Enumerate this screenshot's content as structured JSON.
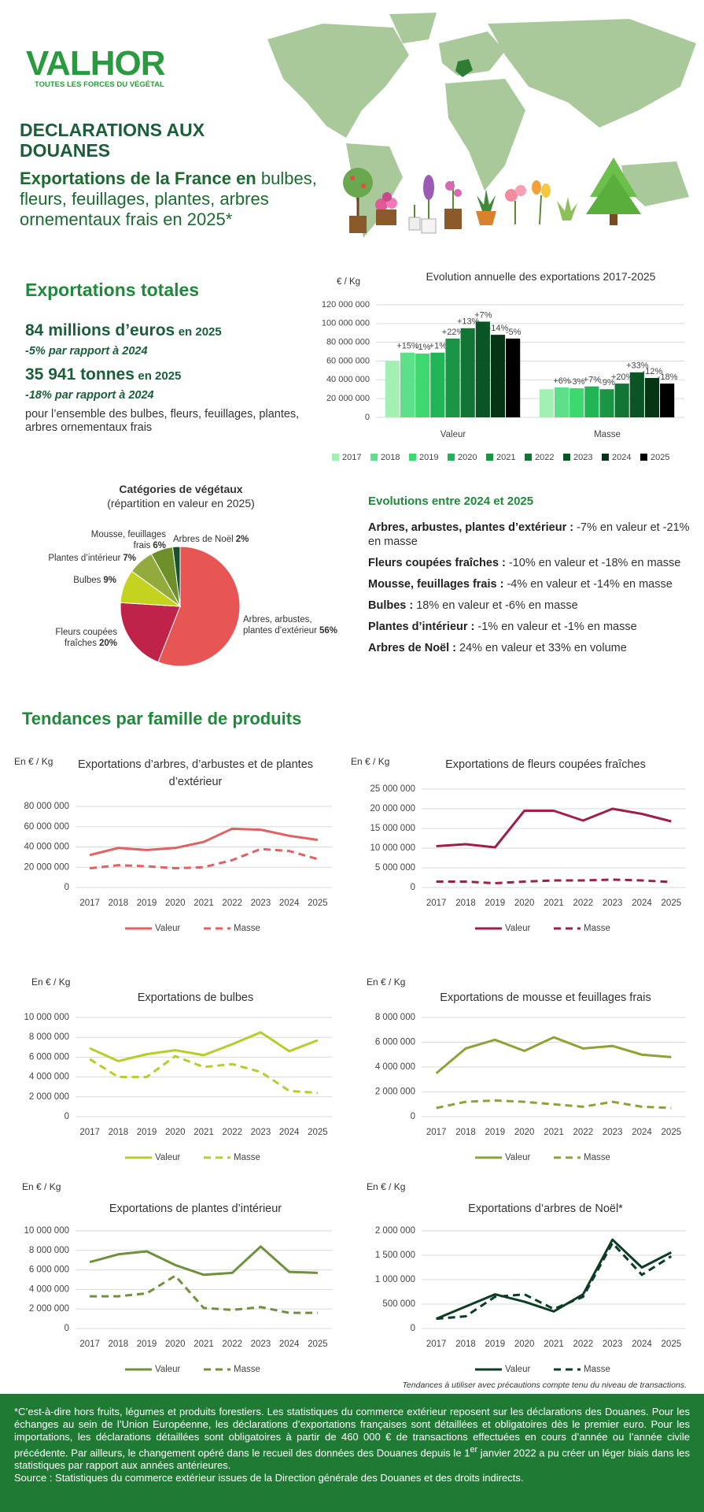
{
  "header": {
    "logo": "VALHOR",
    "tagline": "TOUTES LES FORCES DU VÉGÉTAL",
    "title": "DECLARATIONS AUX DOUANES",
    "subtitle_lead": "Exportations de la France en",
    "subtitle": "bulbes, fleurs, feuillages, plantes, arbres ornementaux frais en 2025*"
  },
  "summary": {
    "heading": "Exportations totales",
    "value": {
      "amount": "84 millions d’euros",
      "period": "en 2025",
      "change": "-5% par rapport à 2024"
    },
    "volume": {
      "amount": "35 941 tonnes",
      "period": "en 2025",
      "change": "-18% par rapport à 2024"
    },
    "scope": "pour l’ensemble des bulbes, fleurs, feuillages, plantes, arbres ornementaux frais"
  },
  "evolutions": {
    "heading": "Evolutions entre 2024 et 2025",
    "items": [
      {
        "label": "Arbres, arbustes, plantes d’extérieur :",
        "text": "-7% en valeur et -21% en masse"
      },
      {
        "label": "Fleurs coupées fraîches :",
        "text": "-10% en valeur et -18% en masse"
      },
      {
        "label": "Mousse, feuillages frais :",
        "text": "-4% en valeur et -14% en masse"
      },
      {
        "label": "Bulbes :",
        "text": "18% en valeur et -6% en masse"
      },
      {
        "label": "Plantes d’intérieur :",
        "text": "-1% en valeur et -1% en masse"
      },
      {
        "label": "Arbres de Noël :",
        "text": "24% en valeur et 33% en volume"
      }
    ]
  },
  "trends_heading": "Tendances par famille de produits",
  "chart_data": [
    {
      "type": "bar",
      "title": "Evolution annuelle des exportations 2017-2025",
      "ylabel": "€ / Kg",
      "categories": [
        "Valeur",
        "Masse"
      ],
      "series": [
        {
          "name": "2017",
          "color": "#a3f0b5",
          "values": [
            60000000,
            30000000
          ],
          "change_labels": [
            null,
            null
          ]
        },
        {
          "name": "2018",
          "color": "#5ee08a",
          "values": [
            69000000,
            32000000
          ],
          "change_labels": [
            "+15%",
            "+6%"
          ]
        },
        {
          "name": "2019",
          "color": "#3dd870",
          "values": [
            68000000,
            31000000
          ],
          "change_labels": [
            "-1%",
            "-3%"
          ]
        },
        {
          "name": "2020",
          "color": "#22b557",
          "values": [
            69000000,
            33000000
          ],
          "change_labels": [
            "+1%",
            "+7%"
          ]
        },
        {
          "name": "2021",
          "color": "#1a9445",
          "values": [
            84000000,
            30000000
          ],
          "change_labels": [
            "+22%",
            "-9%"
          ]
        },
        {
          "name": "2022",
          "color": "#137535",
          "values": [
            95000000,
            36000000
          ],
          "change_labels": [
            "+13%",
            "+20%"
          ]
        },
        {
          "name": "2023",
          "color": "#0b5425",
          "values": [
            102000000,
            48000000
          ],
          "change_labels": [
            "+7%",
            "+33%"
          ]
        },
        {
          "name": "2024",
          "color": "#063516",
          "values": [
            88000000,
            42000000
          ],
          "change_labels": [
            "-14%",
            "-12%"
          ]
        },
        {
          "name": "2025",
          "color": "#000000",
          "values": [
            84000000,
            36000000
          ],
          "change_labels": [
            "-5%",
            "-18%"
          ]
        }
      ],
      "ylim": [
        0,
        120000000
      ],
      "yticks": [
        0,
        {
          "value": 20000000,
          "label": "20 000 000"
        },
        {
          "value": 40000000,
          "label": "40 000 000"
        },
        {
          "value": 60000000,
          "label": "60 000 000"
        },
        {
          "value": 80000000,
          "label": "80 000 000"
        },
        {
          "value": 100000000,
          "label": "100 000 000"
        },
        {
          "value": 120000000,
          "label": "120 000 000"
        }
      ],
      "grid": true,
      "legend": "bottom"
    },
    {
      "type": "pie",
      "title": "Catégories de végétaux",
      "subtitle": "(répartition en valeur en 2025)",
      "categories": [
        "Arbres, arbustes, plantes d’extérieur",
        "Fleurs coupées fraîches",
        "Bulbes",
        "Plantes d’intérieur",
        "Mousse, feuillages frais",
        "Arbres de Noël"
      ],
      "values": [
        56,
        20,
        9,
        7,
        6,
        2
      ],
      "value_labels": [
        "56%",
        "20%",
        "9%",
        "7%",
        "6%",
        "2%"
      ],
      "colors": [
        "#e85555",
        "#c0234a",
        "#c3d31f",
        "#93ab3c",
        "#6f8f2a",
        "#1a5230"
      ]
    },
    {
      "type": "line",
      "title": "Exportations d’arbres, d’arbustes et de plantes d’extérieur",
      "ylabel": "En € / Kg",
      "categories": [
        "2017",
        "2018",
        "2019",
        "2020",
        "2021",
        "2022",
        "2023",
        "2024",
        "2025"
      ],
      "series": [
        {
          "name": "Valeur",
          "color": "#e06262",
          "dash": false,
          "values": [
            32000000,
            39000000,
            37000000,
            39000000,
            45000000,
            58000000,
            57000000,
            51000000,
            47000000
          ]
        },
        {
          "name": "Masse",
          "color": "#e06262",
          "dash": true,
          "values": [
            19000000,
            22000000,
            21000000,
            19000000,
            20000000,
            27000000,
            38000000,
            36000000,
            28000000
          ]
        }
      ],
      "ylim": [
        0,
        80000000
      ],
      "yticks": [
        0,
        {
          "value": 20000000,
          "label": "20 000 000"
        },
        {
          "value": 40000000,
          "label": "40 000 000"
        },
        {
          "value": 60000000,
          "label": "60 000 000"
        },
        {
          "value": 80000000,
          "label": "80 000 000"
        }
      ],
      "grid": true,
      "legend": "bottom"
    },
    {
      "type": "line",
      "title": "Exportations de fleurs coupées fraîches",
      "ylabel": "En € / Kg",
      "categories": [
        "2017",
        "2018",
        "2019",
        "2020",
        "2021",
        "2022",
        "2023",
        "2024",
        "2025"
      ],
      "series": [
        {
          "name": "Valeur",
          "color": "#9e1f4c",
          "dash": false,
          "values": [
            10500000,
            11000000,
            10200000,
            19500000,
            19500000,
            17000000,
            20000000,
            18700000,
            16800000
          ]
        },
        {
          "name": "Masse",
          "color": "#9e1f4c",
          "dash": true,
          "values": [
            1500000,
            1500000,
            1100000,
            1500000,
            1800000,
            1800000,
            2000000,
            1800000,
            1400000
          ]
        }
      ],
      "ylim": [
        0,
        25000000
      ],
      "yticks": [
        0,
        {
          "value": 5000000,
          "label": "5 000 000"
        },
        {
          "value": 10000000,
          "label": "10 000 000"
        },
        {
          "value": 15000000,
          "label": "15 000 000"
        },
        {
          "value": 20000000,
          "label": "20 000 000"
        },
        {
          "value": 25000000,
          "label": "25 000 000"
        }
      ],
      "grid": true,
      "legend": "bottom"
    },
    {
      "type": "line",
      "title": "Exportations de bulbes",
      "ylabel": "En € / Kg",
      "categories": [
        "2017",
        "2018",
        "2019",
        "2020",
        "2021",
        "2022",
        "2023",
        "2024",
        "2025"
      ],
      "series": [
        {
          "name": "Valeur",
          "color": "#b8cc2a",
          "dash": false,
          "values": [
            6900000,
            5600000,
            6300000,
            6700000,
            6200000,
            7300000,
            8500000,
            6600000,
            7700000
          ]
        },
        {
          "name": "Masse",
          "color": "#b8cc2a",
          "dash": true,
          "values": [
            5800000,
            4000000,
            4000000,
            6100000,
            5000000,
            5300000,
            4500000,
            2600000,
            2400000
          ]
        }
      ],
      "ylim": [
        0,
        10000000
      ],
      "yticks": [
        0,
        {
          "value": 2000000,
          "label": "2 000 000"
        },
        {
          "value": 4000000,
          "label": "4 000 000"
        },
        {
          "value": 6000000,
          "label": "6 000 000"
        },
        {
          "value": 8000000,
          "label": "8 000 000"
        },
        {
          "value": 10000000,
          "label": "10 000 000"
        }
      ],
      "grid": true,
      "legend": "bottom"
    },
    {
      "type": "line",
      "title": "Exportations de mousse et feuillages frais",
      "ylabel": "En € / Kg",
      "categories": [
        "2017",
        "2018",
        "2019",
        "2020",
        "2021",
        "2022",
        "2023",
        "2024",
        "2025"
      ],
      "series": [
        {
          "name": "Valeur",
          "color": "#8da336",
          "dash": false,
          "values": [
            3500000,
            5500000,
            6200000,
            5300000,
            6400000,
            5500000,
            5700000,
            5000000,
            4800000
          ]
        },
        {
          "name": "Masse",
          "color": "#8da336",
          "dash": true,
          "values": [
            700000,
            1200000,
            1300000,
            1200000,
            1000000,
            800000,
            1200000,
            800000,
            700000
          ]
        }
      ],
      "ylim": [
        0,
        8000000
      ],
      "yticks": [
        0,
        {
          "value": 2000000,
          "label": "2 000 000"
        },
        {
          "value": 4000000,
          "label": "4 000 000"
        },
        {
          "value": 6000000,
          "label": "6 000 000"
        },
        {
          "value": 8000000,
          "label": "8 000 000"
        }
      ],
      "grid": true,
      "legend": "bottom"
    },
    {
      "type": "line",
      "title": "Exportations de plantes d’intérieur",
      "ylabel": "En € / Kg",
      "categories": [
        "2017",
        "2018",
        "2019",
        "2020",
        "2021",
        "2022",
        "2023",
        "2024",
        "2025"
      ],
      "series": [
        {
          "name": "Valeur",
          "color": "#6f913b",
          "dash": false,
          "values": [
            6800000,
            7600000,
            7900000,
            6500000,
            5500000,
            5700000,
            8400000,
            5800000,
            5700000
          ]
        },
        {
          "name": "Masse",
          "color": "#6f913b",
          "dash": true,
          "values": [
            3300000,
            3300000,
            3600000,
            5400000,
            2100000,
            1900000,
            2200000,
            1600000,
            1600000
          ]
        }
      ],
      "ylim": [
        0,
        10000000
      ],
      "yticks": [
        0,
        {
          "value": 2000000,
          "label": "2 000 000"
        },
        {
          "value": 4000000,
          "label": "4 000 000"
        },
        {
          "value": 6000000,
          "label": "6 000 000"
        },
        {
          "value": 8000000,
          "label": "8 000 000"
        },
        {
          "value": 10000000,
          "label": "10 000 000"
        }
      ],
      "grid": true,
      "legend": "bottom"
    },
    {
      "type": "line",
      "title": "Exportations d’arbres de Noël*",
      "ylabel": "En € / Kg",
      "categories": [
        "2017",
        "2018",
        "2019",
        "2020",
        "2021",
        "2022",
        "2023",
        "2024",
        "2025"
      ],
      "series": [
        {
          "name": "Valeur",
          "color": "#0e3d26",
          "dash": false,
          "values": [
            200000,
            450000,
            700000,
            550000,
            350000,
            700000,
            1820000,
            1250000,
            1560000
          ]
        },
        {
          "name": "Masse",
          "color": "#0e3d26",
          "dash": true,
          "values": [
            200000,
            250000,
            650000,
            700000,
            400000,
            650000,
            1750000,
            1100000,
            1480000
          ]
        }
      ],
      "ylim": [
        0,
        2000000
      ],
      "yticks": [
        0,
        {
          "value": 500000,
          "label": "500 000"
        },
        {
          "value": 1000000,
          "label": "1 000 000"
        },
        {
          "value": 1500000,
          "label": "1 500 000"
        },
        {
          "value": 2000000,
          "label": "2 000 000"
        }
      ],
      "grid": true,
      "legend": "bottom"
    }
  ],
  "note": "Tendances à utiliser avec précautions compte tenu du niveau de transactions.",
  "footer": {
    "notes": [
      "*C’est-à-dire hors fruits, légumes et produits forestiers. Les statistiques du commerce extérieur reposent sur les déclarations des Douanes. Pour les échanges au sein de l’Union Européenne, les déclarations d’exportations françaises sont détaillées et obligatoires dès le premier euro. Pour les importations, les déclarations détaillées sont obligatoires à partir de 460 000 € de transactions effectuées en cours d’année ou l’année civile précédente. Par ailleurs, le changement opéré dans le recueil des données des Douanes depuis le 1",
      "er",
      " janvier 2022 a pu créer un léger biais dans les statistiques par rapport aux années antérieures."
    ],
    "source": "Source : Statistiques du commerce extérieur issues de la Direction générale des Douanes et des droits indirects."
  }
}
